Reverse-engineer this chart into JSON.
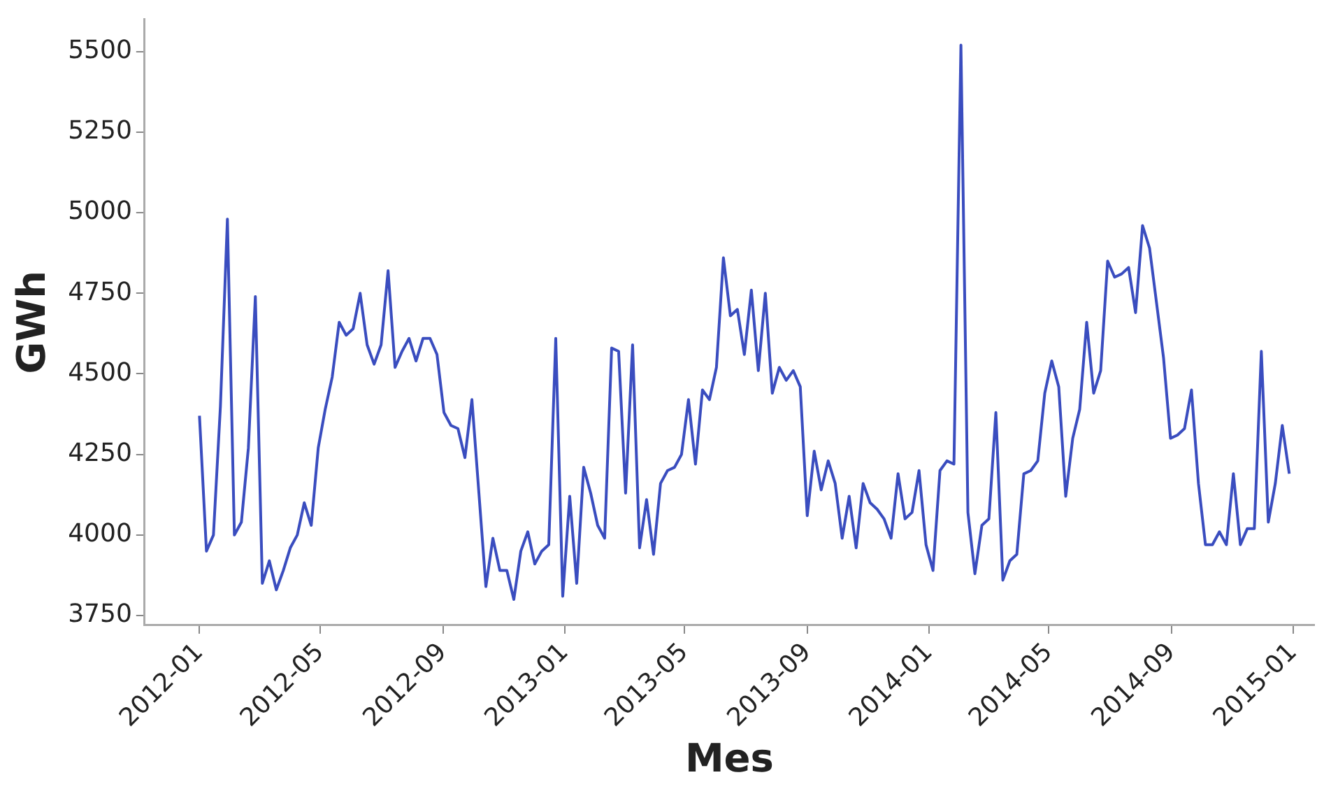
{
  "chart_data": {
    "type": "line",
    "xlabel": "Mes",
    "ylabel": "GWh",
    "x": [
      "2012-01-01",
      "2012-01-08",
      "2012-01-15",
      "2012-01-22",
      "2012-01-29",
      "2012-02-05",
      "2012-02-12",
      "2012-02-19",
      "2012-02-26",
      "2012-03-04",
      "2012-03-11",
      "2012-03-18",
      "2012-03-25",
      "2012-04-01",
      "2012-04-08",
      "2012-04-15",
      "2012-04-22",
      "2012-04-29",
      "2012-05-06",
      "2012-05-13",
      "2012-05-20",
      "2012-05-27",
      "2012-06-03",
      "2012-06-10",
      "2012-06-17",
      "2012-06-24",
      "2012-07-01",
      "2012-07-08",
      "2012-07-15",
      "2012-07-22",
      "2012-07-29",
      "2012-08-05",
      "2012-08-12",
      "2012-08-19",
      "2012-08-26",
      "2012-09-02",
      "2012-09-09",
      "2012-09-16",
      "2012-09-23",
      "2012-09-30",
      "2012-10-07",
      "2012-10-14",
      "2012-10-21",
      "2012-10-28",
      "2012-11-04",
      "2012-11-11",
      "2012-11-18",
      "2012-11-25",
      "2012-12-02",
      "2012-12-09",
      "2012-12-16",
      "2012-12-23",
      "2012-12-30",
      "2013-01-06",
      "2013-01-13",
      "2013-01-20",
      "2013-01-27",
      "2013-02-03",
      "2013-02-10",
      "2013-02-17",
      "2013-02-24",
      "2013-03-03",
      "2013-03-10",
      "2013-03-17",
      "2013-03-24",
      "2013-03-31",
      "2013-04-07",
      "2013-04-14",
      "2013-04-21",
      "2013-04-28",
      "2013-05-05",
      "2013-05-12",
      "2013-05-19",
      "2013-05-26",
      "2013-06-02",
      "2013-06-09",
      "2013-06-16",
      "2013-06-23",
      "2013-06-30",
      "2013-07-07",
      "2013-07-14",
      "2013-07-21",
      "2013-07-28",
      "2013-08-04",
      "2013-08-11",
      "2013-08-18",
      "2013-08-25",
      "2013-09-01",
      "2013-09-08",
      "2013-09-15",
      "2013-09-22",
      "2013-09-29",
      "2013-10-06",
      "2013-10-13",
      "2013-10-20",
      "2013-10-27",
      "2013-11-03",
      "2013-11-10",
      "2013-11-17",
      "2013-11-24",
      "2013-12-01",
      "2013-12-08",
      "2013-12-15",
      "2013-12-22",
      "2013-12-29",
      "2014-01-05",
      "2014-01-12",
      "2014-01-19",
      "2014-01-26",
      "2014-02-02",
      "2014-02-09",
      "2014-02-16",
      "2014-02-23",
      "2014-03-02",
      "2014-03-09",
      "2014-03-16",
      "2014-03-23",
      "2014-03-30",
      "2014-04-06",
      "2014-04-13",
      "2014-04-20",
      "2014-04-27",
      "2014-05-04",
      "2014-05-11",
      "2014-05-18",
      "2014-05-25",
      "2014-06-01",
      "2014-06-08",
      "2014-06-15",
      "2014-06-22",
      "2014-06-29",
      "2014-07-06",
      "2014-07-13",
      "2014-07-20",
      "2014-07-27",
      "2014-08-03",
      "2014-08-10",
      "2014-08-17",
      "2014-08-24",
      "2014-08-31",
      "2014-09-07",
      "2014-09-14",
      "2014-09-21",
      "2014-09-28",
      "2014-10-05",
      "2014-10-12",
      "2014-10-19",
      "2014-10-26",
      "2014-11-02",
      "2014-11-09",
      "2014-11-16",
      "2014-11-23",
      "2014-11-30",
      "2014-12-07",
      "2014-12-14",
      "2014-12-21",
      "2014-12-28"
    ],
    "series": [
      {
        "color": "#3a4dbf",
        "values": [
          4370,
          3950,
          4000,
          4400,
          4980,
          4000,
          4040,
          4270,
          4740,
          3850,
          3920,
          3830,
          3890,
          3960,
          4000,
          4100,
          4030,
          4270,
          4390,
          4490,
          4660,
          4620,
          4640,
          4750,
          4590,
          4530,
          4590,
          4820,
          4520,
          4570,
          4610,
          4540,
          4610,
          4610,
          4560,
          4380,
          4340,
          4330,
          4240,
          4420,
          4130,
          3840,
          3990,
          3890,
          3890,
          3800,
          3950,
          4010,
          3910,
          3950,
          3970,
          4610,
          3810,
          4120,
          3850,
          4210,
          4130,
          4030,
          3990,
          4580,
          4570,
          4130,
          4590,
          3960,
          4110,
          3940,
          4160,
          4200,
          4210,
          4250,
          4420,
          4220,
          4450,
          4420,
          4520,
          4860,
          4680,
          4700,
          4560,
          4760,
          4510,
          4750,
          4440,
          4520,
          4480,
          4510,
          4460,
          4060,
          4260,
          4140,
          4230,
          4160,
          3990,
          4120,
          3960,
          4160,
          4100,
          4080,
          4050,
          3990,
          4190,
          4050,
          4070,
          4200,
          3970,
          3890,
          4200,
          4230,
          4220,
          5520,
          4070,
          3880,
          4030,
          4050,
          4380,
          3860,
          3920,
          3940,
          4190,
          4200,
          4230,
          4440,
          4540,
          4460,
          4120,
          4300,
          4390,
          4660,
          4440,
          4510,
          4850,
          4800,
          4810,
          4830,
          4690,
          4960,
          4890,
          4720,
          4550,
          4300,
          4310,
          4330,
          4450,
          4160,
          3970,
          3970,
          4010,
          3970,
          4190,
          3970,
          4020,
          4020,
          4570,
          4040,
          4160,
          4340,
          4190
        ]
      }
    ],
    "xlim": [
      "2011-11-07",
      "2015-01-22"
    ],
    "ylim": [
      3720,
      5600
    ],
    "xticks": [
      "2012-01",
      "2012-05",
      "2012-09",
      "2013-01",
      "2013-05",
      "2013-09",
      "2014-01",
      "2014-05",
      "2014-09",
      "2015-01"
    ],
    "yticks": [
      3750,
      4000,
      4250,
      4500,
      4750,
      5000,
      5250,
      5500
    ],
    "grid": false,
    "legend": false,
    "marker": "none",
    "line_style": "solid"
  }
}
